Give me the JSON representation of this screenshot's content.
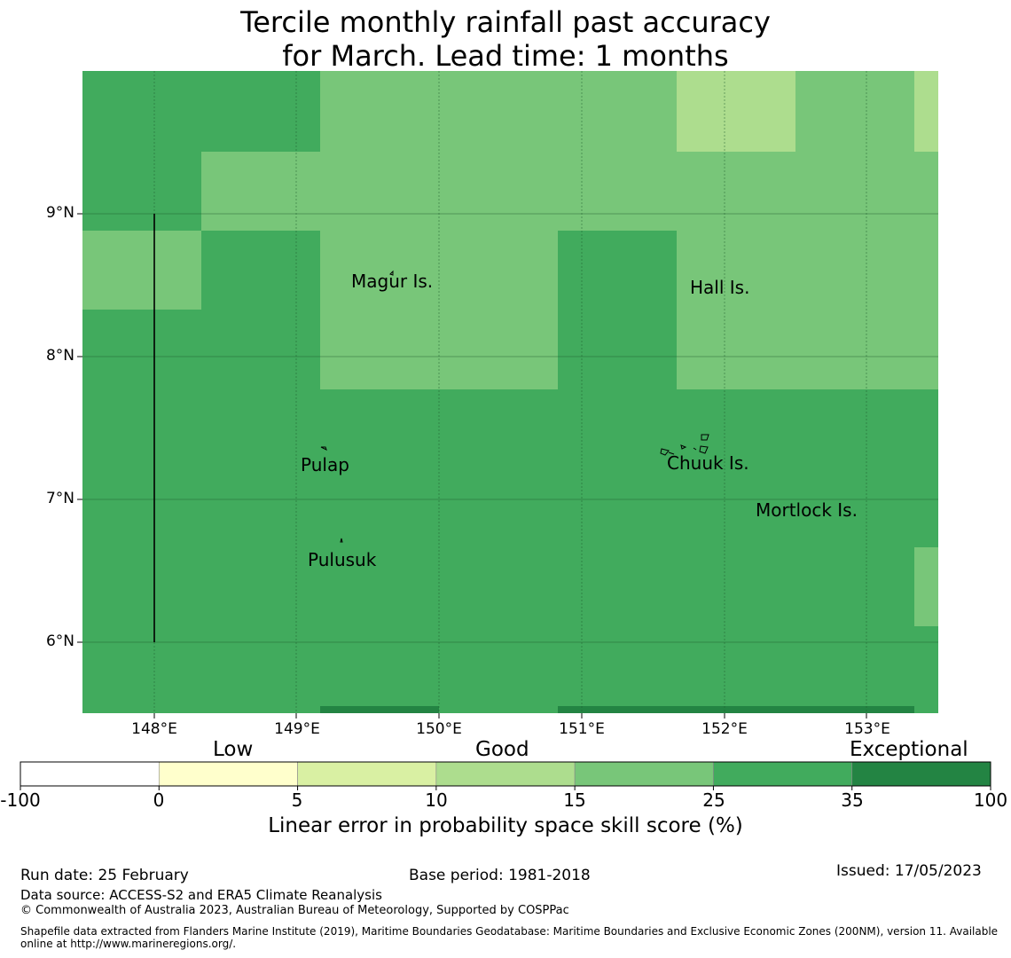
{
  "title_line1": "Tercile monthly rainfall past accuracy",
  "title_line2": "for March. Lead time: 1 months",
  "latitude_labels": [
    "9°N",
    "8°N",
    "7°N",
    "6°N"
  ],
  "longitude_labels": [
    "148°E",
    "149°E",
    "150°E",
    "151°E",
    "152°E",
    "153°E"
  ],
  "places": [
    "Magur Is.",
    "Hall Is.",
    "Pulap",
    "Chuuk Is.",
    "Mortlock Is.",
    "Pulusuk"
  ],
  "colorbar": {
    "categories": [
      "Low",
      "Good",
      "Exceptional"
    ],
    "ticks": [
      "-100",
      "0",
      "5",
      "10",
      "15",
      "25",
      "35",
      "100"
    ],
    "colors": [
      "#ffffff",
      "#ffffcc",
      "#d9f0a3",
      "#addd8e",
      "#78c679",
      "#41ab5d",
      "#238443"
    ],
    "label": "Linear error in probability space skill score (%)"
  },
  "map_colors": {
    "band_25_35": "#41ab5d",
    "band_15_25": "#78c679",
    "band_10_15": "#addd8e",
    "band_35_100": "#238443"
  },
  "footer": {
    "run_date": "Run date: 25 February",
    "base_period": "Base period: 1981-2018",
    "issued": "Issued: 17/05/2023",
    "data_source": "Data source: ACCESS-S2 and ERA5 Climate Reanalysis",
    "copyright": "© Commonwealth of Australia 2023, Australian Bureau of Meteorology, Supported by COSPPac",
    "shapefile_line1": "Shapefile data extracted from Flanders Marine Institute (2019), Maritime Boundaries Geodatabase: Maritime Boundaries and Exclusive Economic Zones (200NM), version 11. Available",
    "shapefile_line2": "online at http://www.marineregions.org/."
  }
}
